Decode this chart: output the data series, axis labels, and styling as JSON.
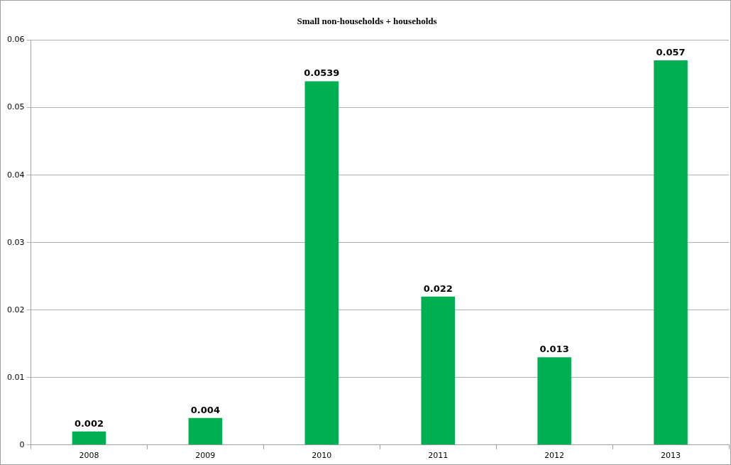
{
  "chart_data": {
    "type": "bar",
    "title": "Small non-households + households",
    "categories": [
      "2008",
      "2009",
      "2010",
      "2011",
      "2012",
      "2013"
    ],
    "values": [
      0.002,
      0.004,
      0.0539,
      0.022,
      0.013,
      0.057
    ],
    "color": "#00b050",
    "ylim": [
      0,
      0.06
    ],
    "yticks": [
      0,
      0.01,
      0.02,
      0.03,
      0.04,
      0.05,
      0.06
    ],
    "grid": "y",
    "data_labels": true
  }
}
